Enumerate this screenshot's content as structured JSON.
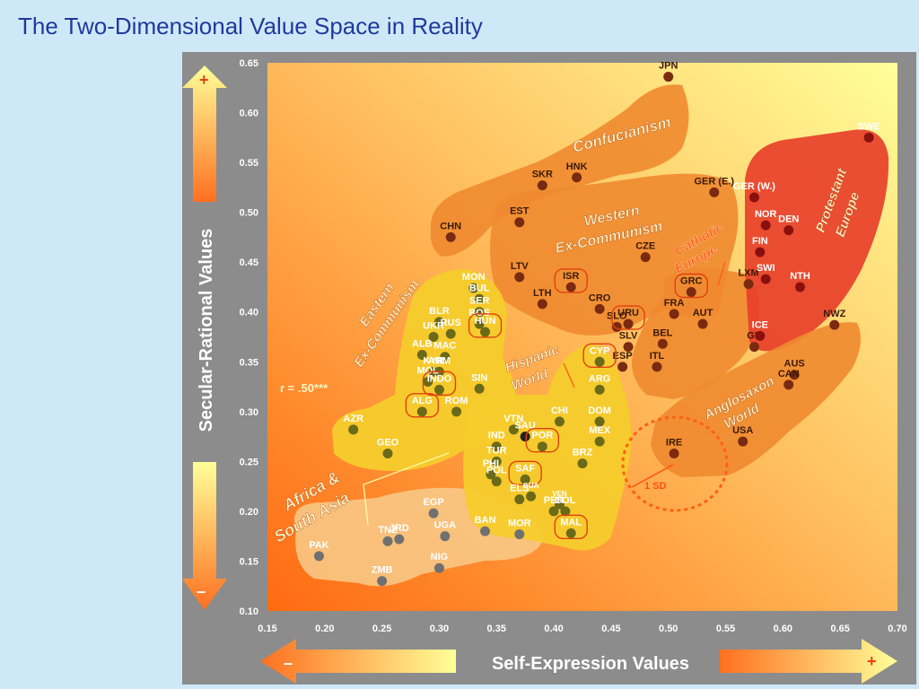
{
  "slide": {
    "title": "The Two-Dimensional Value Space in Reality"
  },
  "chart_data": {
    "type": "scatter",
    "title": "The Two-Dimensional Value Space in Reality",
    "xlabel": "Self-Expression Values",
    "ylabel": "Secular-Rational Values",
    "xlim": [
      0.15,
      0.7
    ],
    "ylim": [
      0.1,
      0.65
    ],
    "x_ticks": [
      "0.15",
      "0.20",
      "0.25",
      "0.30",
      "0.35",
      "0.40",
      "0.45",
      "0.50",
      "0.55",
      "0.60",
      "0.65",
      "0.70"
    ],
    "y_ticks": [
      "0.10",
      "0.15",
      "0.20",
      "0.25",
      "0.30",
      "0.35",
      "0.40",
      "0.45",
      "0.50",
      "0.55",
      "0.60",
      "0.65"
    ],
    "axis_signs": {
      "plus": "+",
      "minus": "–"
    },
    "correlation": "r = .50***",
    "sd_label": "1 SD",
    "zones": [
      {
        "name": "Confucianism",
        "color": "#f08a30"
      },
      {
        "name": "Western Ex-Communism",
        "color": "#f08a30"
      },
      {
        "name": "Protestant Europe",
        "color": "#e8402a"
      },
      {
        "name": "Catholic Europe",
        "color": "#f08a30"
      },
      {
        "name": "Anglosaxon World",
        "color": "#f08a30"
      },
      {
        "name": "Eastern Ex-Communism",
        "color": "#f6cc2c"
      },
      {
        "name": "Hispanic World",
        "color": "#f6cc2c"
      },
      {
        "name": "Africa & South Asia",
        "color": "#f8c885"
      }
    ],
    "points": [
      {
        "label": "JPN",
        "x": 0.5,
        "y": 0.636,
        "group": "orange"
      },
      {
        "label": "HNK",
        "x": 0.42,
        "y": 0.535,
        "group": "orange"
      },
      {
        "label": "SKR",
        "x": 0.39,
        "y": 0.527,
        "group": "orange"
      },
      {
        "label": "CHN",
        "x": 0.31,
        "y": 0.475,
        "group": "orange"
      },
      {
        "label": "EST",
        "x": 0.37,
        "y": 0.49,
        "group": "orange"
      },
      {
        "label": "GER (E.)",
        "x": 0.54,
        "y": 0.52,
        "group": "orange"
      },
      {
        "label": "CZE",
        "x": 0.48,
        "y": 0.455,
        "group": "orange"
      },
      {
        "label": "LTV",
        "x": 0.37,
        "y": 0.435,
        "group": "orange"
      },
      {
        "label": "ISR",
        "x": 0.415,
        "y": 0.425,
        "group": "orange"
      },
      {
        "label": "LTH",
        "x": 0.39,
        "y": 0.408,
        "group": "orange"
      },
      {
        "label": "CRO",
        "x": 0.44,
        "y": 0.403,
        "group": "orange"
      },
      {
        "label": "SLO",
        "x": 0.455,
        "y": 0.385,
        "group": "orange"
      },
      {
        "label": "URU",
        "x": 0.465,
        "y": 0.388,
        "group": "orange"
      },
      {
        "label": "SLV",
        "x": 0.465,
        "y": 0.365,
        "group": "orange"
      },
      {
        "label": "GRC",
        "x": 0.52,
        "y": 0.42,
        "group": "orange"
      },
      {
        "label": "FRA",
        "x": 0.505,
        "y": 0.398,
        "group": "orange"
      },
      {
        "label": "AUT",
        "x": 0.53,
        "y": 0.388,
        "group": "orange"
      },
      {
        "label": "BEL",
        "x": 0.495,
        "y": 0.368,
        "group": "orange"
      },
      {
        "label": "ITL",
        "x": 0.49,
        "y": 0.345,
        "group": "orange"
      },
      {
        "label": "ESP",
        "x": 0.46,
        "y": 0.345,
        "group": "orange"
      },
      {
        "label": "LXM",
        "x": 0.57,
        "y": 0.428,
        "group": "orange"
      },
      {
        "label": "GB",
        "x": 0.575,
        "y": 0.365,
        "group": "orange"
      },
      {
        "label": "AUS",
        "x": 0.61,
        "y": 0.337,
        "group": "orange"
      },
      {
        "label": "CAN",
        "x": 0.605,
        "y": 0.327,
        "group": "orange"
      },
      {
        "label": "NWZ",
        "x": 0.645,
        "y": 0.387,
        "group": "orange"
      },
      {
        "label": "USA",
        "x": 0.565,
        "y": 0.27,
        "group": "orange"
      },
      {
        "label": "IRE",
        "x": 0.505,
        "y": 0.258,
        "group": "orange"
      },
      {
        "label": "SWE",
        "x": 0.675,
        "y": 0.575,
        "group": "red"
      },
      {
        "label": "GER (W.)",
        "x": 0.575,
        "y": 0.515,
        "group": "red"
      },
      {
        "label": "NOR",
        "x": 0.585,
        "y": 0.487,
        "group": "red"
      },
      {
        "label": "DEN",
        "x": 0.605,
        "y": 0.482,
        "group": "red"
      },
      {
        "label": "FIN",
        "x": 0.58,
        "y": 0.46,
        "group": "red"
      },
      {
        "label": "SWI",
        "x": 0.585,
        "y": 0.433,
        "group": "red"
      },
      {
        "label": "NTH",
        "x": 0.615,
        "y": 0.425,
        "group": "red"
      },
      {
        "label": "ICE",
        "x": 0.58,
        "y": 0.376,
        "group": "red"
      },
      {
        "label": "MON",
        "x": 0.33,
        "y": 0.424,
        "group": "olive"
      },
      {
        "label": "BUL",
        "x": 0.335,
        "y": 0.413,
        "group": "olive"
      },
      {
        "label": "SER",
        "x": 0.335,
        "y": 0.4,
        "group": "olive"
      },
      {
        "label": "BOS",
        "x": 0.335,
        "y": 0.388,
        "group": "olive"
      },
      {
        "label": "HUN",
        "x": 0.34,
        "y": 0.38,
        "group": "olive"
      },
      {
        "label": "BLR",
        "x": 0.3,
        "y": 0.39,
        "group": "olive"
      },
      {
        "label": "UKR",
        "x": 0.295,
        "y": 0.375,
        "group": "olive"
      },
      {
        "label": "RUS",
        "x": 0.31,
        "y": 0.378,
        "group": "olive"
      },
      {
        "label": "ALB",
        "x": 0.285,
        "y": 0.357,
        "group": "olive"
      },
      {
        "label": "MAC",
        "x": 0.305,
        "y": 0.355,
        "group": "olive"
      },
      {
        "label": "KYR",
        "x": 0.295,
        "y": 0.34,
        "group": "olive"
      },
      {
        "label": "ARM",
        "x": 0.3,
        "y": 0.34,
        "group": "olive"
      },
      {
        "label": "MOL",
        "x": 0.29,
        "y": 0.33,
        "group": "olive"
      },
      {
        "label": "SIN",
        "x": 0.335,
        "y": 0.323,
        "group": "olive"
      },
      {
        "label": "INDO",
        "x": 0.3,
        "y": 0.322,
        "group": "olive"
      },
      {
        "label": "ALG",
        "x": 0.285,
        "y": 0.3,
        "group": "olive"
      },
      {
        "label": "ROM",
        "x": 0.315,
        "y": 0.3,
        "group": "olive"
      },
      {
        "label": "AZR",
        "x": 0.225,
        "y": 0.282,
        "group": "olive"
      },
      {
        "label": "GEO",
        "x": 0.255,
        "y": 0.258,
        "group": "olive"
      },
      {
        "label": "VTN",
        "x": 0.365,
        "y": 0.282,
        "group": "olive"
      },
      {
        "label": "SAU",
        "x": 0.375,
        "y": 0.275,
        "group": "dark"
      },
      {
        "label": "CHI",
        "x": 0.405,
        "y": 0.29,
        "group": "olive"
      },
      {
        "label": "DOM",
        "x": 0.44,
        "y": 0.29,
        "group": "olive"
      },
      {
        "label": "CYP",
        "x": 0.44,
        "y": 0.35,
        "group": "olive"
      },
      {
        "label": "ARG",
        "x": 0.44,
        "y": 0.322,
        "group": "olive"
      },
      {
        "label": "MEX",
        "x": 0.44,
        "y": 0.27,
        "group": "olive"
      },
      {
        "label": "IND",
        "x": 0.35,
        "y": 0.265,
        "group": "olive"
      },
      {
        "label": "TUR",
        "x": 0.35,
        "y": 0.25,
        "group": "olive"
      },
      {
        "label": "POR",
        "x": 0.39,
        "y": 0.265,
        "group": "olive"
      },
      {
        "label": "BRZ",
        "x": 0.425,
        "y": 0.248,
        "group": "olive"
      },
      {
        "label": "PHI",
        "x": 0.345,
        "y": 0.237,
        "group": "olive"
      },
      {
        "label": "POL",
        "x": 0.35,
        "y": 0.23,
        "group": "olive"
      },
      {
        "label": "SAF",
        "x": 0.375,
        "y": 0.232,
        "group": "olive"
      },
      {
        "label": "GUA",
        "x": 0.38,
        "y": 0.215,
        "group": "olive"
      },
      {
        "label": "ELS",
        "x": 0.37,
        "y": 0.212,
        "group": "olive"
      },
      {
        "label": "VEN",
        "x": 0.405,
        "y": 0.207,
        "group": "olive"
      },
      {
        "label": "COL",
        "x": 0.41,
        "y": 0.2,
        "group": "olive"
      },
      {
        "label": "PER",
        "x": 0.4,
        "y": 0.2,
        "group": "olive"
      },
      {
        "label": "MAL",
        "x": 0.415,
        "y": 0.178,
        "group": "olive"
      },
      {
        "label": "BAN",
        "x": 0.34,
        "y": 0.18,
        "group": "gray"
      },
      {
        "label": "MOR",
        "x": 0.37,
        "y": 0.177,
        "group": "gray"
      },
      {
        "label": "EGP",
        "x": 0.295,
        "y": 0.198,
        "group": "gray"
      },
      {
        "label": "JRD",
        "x": 0.265,
        "y": 0.172,
        "group": "gray"
      },
      {
        "label": "UGA",
        "x": 0.305,
        "y": 0.175,
        "group": "gray"
      },
      {
        "label": "TNZ",
        "x": 0.255,
        "y": 0.17,
        "group": "gray"
      },
      {
        "label": "PAK",
        "x": 0.195,
        "y": 0.155,
        "group": "gray"
      },
      {
        "label": "NIG",
        "x": 0.3,
        "y": 0.143,
        "group": "gray"
      },
      {
        "label": "ZMB",
        "x": 0.25,
        "y": 0.13,
        "group": "gray"
      }
    ],
    "colors": {
      "orange": "#7a2a10",
      "red": "#8a1010",
      "olive": "#6a6a18",
      "dark": "#222222",
      "gray": "#707070"
    },
    "circled": [
      "ISR",
      "URU",
      "GRC",
      "HUN",
      "ALG",
      "INDO",
      "CYP",
      "POR",
      "SAF",
      "MAL"
    ],
    "grid": false,
    "legend": "none"
  }
}
